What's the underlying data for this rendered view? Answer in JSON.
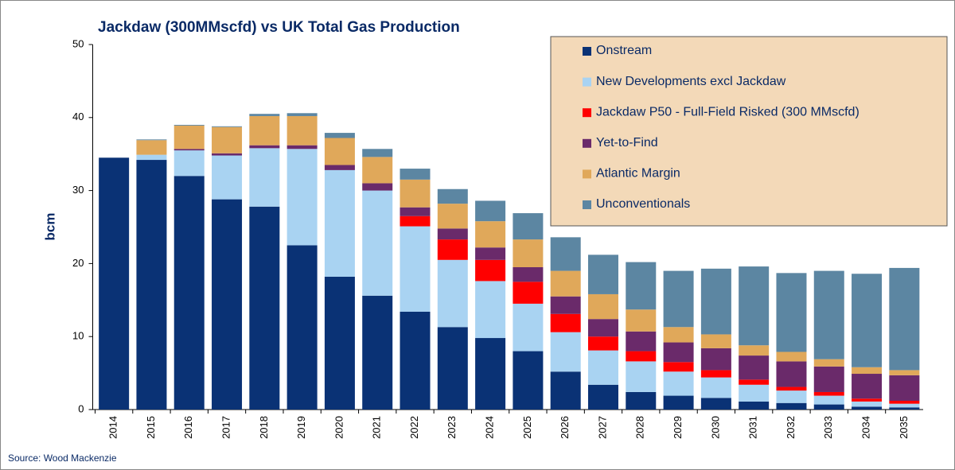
{
  "chart_data": {
    "type": "stacked_bar",
    "title": "Jackdaw (300MMscfd) vs UK Total Gas Production",
    "y_label": "bcm",
    "source": "Source: Wood Mackenzie",
    "categories": [
      "2014",
      "2015",
      "2016",
      "2017",
      "2018",
      "2019",
      "2020",
      "2021",
      "2022",
      "2023",
      "2024",
      "2025",
      "2026",
      "2027",
      "2028",
      "2029",
      "2030",
      "2031",
      "2032",
      "2033",
      "2034",
      "2035"
    ],
    "series": [
      {
        "name": "Onstream",
        "color": "#0a3275",
        "values": [
          34.5,
          34.2,
          32.0,
          28.8,
          27.8,
          22.5,
          18.2,
          15.6,
          13.4,
          11.3,
          9.8,
          8.0,
          5.2,
          3.4,
          2.4,
          1.9,
          1.6,
          1.1,
          0.9,
          0.7,
          0.4,
          0.3
        ]
      },
      {
        "name": "New Developments excl Jackdaw",
        "color": "#a9d3f2",
        "values": [
          0,
          0.7,
          3.5,
          6.0,
          8.0,
          13.2,
          14.6,
          14.4,
          11.7,
          9.2,
          7.8,
          6.5,
          5.4,
          4.7,
          4.2,
          3.3,
          2.8,
          2.3,
          1.7,
          1.2,
          0.7,
          0.5
        ]
      },
      {
        "name": "Jackdaw P50 - Full-Field Risked (300 MMscfd)",
        "color": "#ff0000",
        "values": [
          0,
          0,
          0,
          0,
          0,
          0,
          0,
          0,
          1.4,
          2.8,
          2.9,
          3.0,
          2.5,
          1.9,
          1.4,
          1.3,
          1.0,
          0.7,
          0.5,
          0.5,
          0.4,
          0.4
        ]
      },
      {
        "name": "Yet-to-Find",
        "color": "#6a2a6a",
        "values": [
          0,
          0,
          0.2,
          0.3,
          0.4,
          0.5,
          0.7,
          1.0,
          1.2,
          1.5,
          1.7,
          2.0,
          2.4,
          2.4,
          2.7,
          2.7,
          3.0,
          3.3,
          3.5,
          3.5,
          3.4,
          3.5
        ]
      },
      {
        "name": "Atlantic Margin",
        "color": "#e0a85a",
        "values": [
          0,
          2.0,
          3.2,
          3.6,
          4.0,
          4.0,
          3.7,
          3.6,
          3.8,
          3.4,
          3.6,
          3.8,
          3.5,
          3.4,
          3.0,
          2.1,
          1.9,
          1.4,
          1.3,
          1.0,
          0.9,
          0.7
        ]
      },
      {
        "name": "Unconventionals",
        "color": "#5c86a2",
        "values": [
          0,
          0.1,
          0.1,
          0.1,
          0.3,
          0.4,
          0.7,
          1.1,
          1.5,
          2.0,
          2.8,
          3.6,
          4.6,
          5.4,
          6.5,
          7.7,
          9.0,
          10.8,
          10.8,
          12.1,
          12.8,
          14.0
        ]
      }
    ],
    "ylim": [
      0,
      50
    ],
    "yticks": [
      0,
      10,
      20,
      30,
      40,
      50
    ],
    "legend": "upper right"
  }
}
